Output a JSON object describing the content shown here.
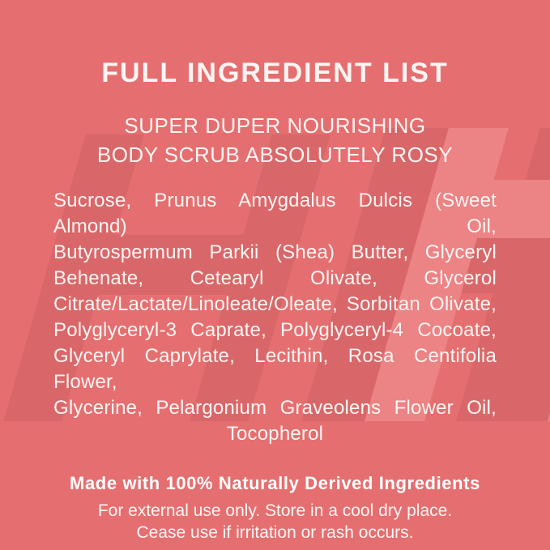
{
  "colors": {
    "background": "#e56f70",
    "watermark_dark": "#d96769",
    "watermark_light": "#ec8384",
    "text": "#fdf5f3"
  },
  "watermark": {
    "letter": "H"
  },
  "header": {
    "title": "FULL INGREDIENT LIST",
    "subtitle_line1": "SUPER DUPER NOURISHING",
    "subtitle_line2": "BODY SCRUB ABSOLUTELY ROSY"
  },
  "ingredients": {
    "lines": [
      "Sucrose, Prunus Amygdalus Dulcis (Sweet Almond) Oil,",
      "Butyrospermum Parkii (Shea) Butter, Glyceryl",
      "Behenate, Cetearyl Olivate, Glycerol",
      "Citrate/Lactate/Linoleate/Oleate, Sorbitan Olivate,",
      "Polyglyceryl-3 Caprate, Polyglyceryl-4 Cocoate,",
      "Glyceryl Caprylate, Lecithin, Rosa Centifolia Flower,",
      "Glycerine, Pelargonium Graveolens Flower Oil,",
      "Tocopherol"
    ]
  },
  "footer": {
    "claim": "Made with 100% Naturally Derived Ingredients",
    "usage_line1": "For external use only. Store in a cool dry place.",
    "usage_line2": "Cease use if irritation or rash occurs."
  }
}
